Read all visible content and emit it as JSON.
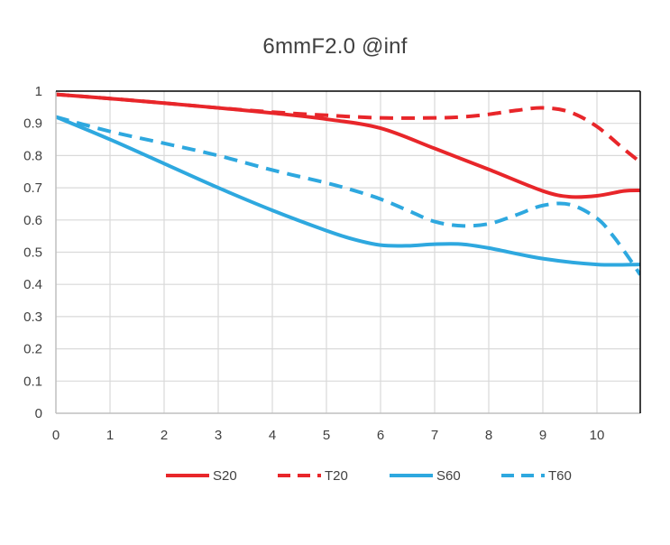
{
  "chart_data": {
    "type": "line",
    "title": "6mmF2.0 @inf",
    "xlabel": "",
    "ylabel": "",
    "xlim": [
      0,
      10.8
    ],
    "ylim": [
      0,
      1
    ],
    "x_ticks": [
      "0",
      "1",
      "2",
      "3",
      "4",
      "5",
      "6",
      "7",
      "8",
      "9",
      "10"
    ],
    "y_ticks": [
      "0",
      "0.1",
      "0.2",
      "0.3",
      "0.4",
      "0.5",
      "0.6",
      "0.7",
      "0.8",
      "0.9",
      "1"
    ],
    "grid": true,
    "legend_position": "bottom",
    "series": [
      {
        "name": "S20",
        "color": "#e8262a",
        "style": "solid",
        "x": [
          0,
          1,
          2,
          3,
          4,
          5,
          6,
          7,
          8,
          9,
          9.5,
          10,
          10.5,
          10.8
        ],
        "y": [
          0.99,
          0.977,
          0.963,
          0.948,
          0.932,
          0.913,
          0.885,
          0.822,
          0.757,
          0.69,
          0.672,
          0.675,
          0.69,
          0.692
        ]
      },
      {
        "name": "T20",
        "color": "#e8262a",
        "style": "dashed",
        "x": [
          0,
          1,
          2,
          3,
          4,
          5,
          6,
          7,
          7.5,
          8,
          8.5,
          9,
          9.5,
          10,
          10.5,
          10.8
        ],
        "y": [
          0.99,
          0.977,
          0.963,
          0.948,
          0.935,
          0.925,
          0.917,
          0.917,
          0.92,
          0.928,
          0.94,
          0.948,
          0.935,
          0.89,
          0.82,
          0.78
        ]
      },
      {
        "name": "S60",
        "color": "#2ea8df",
        "style": "solid",
        "x": [
          0,
          1,
          2,
          3,
          4,
          5,
          5.5,
          6,
          6.5,
          7,
          7.5,
          8,
          9,
          10,
          10.8
        ],
        "y": [
          0.92,
          0.85,
          0.775,
          0.7,
          0.63,
          0.567,
          0.54,
          0.522,
          0.52,
          0.525,
          0.525,
          0.513,
          0.48,
          0.462,
          0.462
        ]
      },
      {
        "name": "T60",
        "color": "#2ea8df",
        "style": "dashed",
        "x": [
          0,
          1,
          2,
          3,
          4,
          5,
          5.5,
          6,
          6.5,
          7,
          7.5,
          8,
          8.5,
          9,
          9.5,
          10,
          10.3,
          10.6,
          10.8
        ],
        "y": [
          0.92,
          0.875,
          0.838,
          0.8,
          0.755,
          0.715,
          0.692,
          0.665,
          0.63,
          0.595,
          0.582,
          0.588,
          0.615,
          0.645,
          0.648,
          0.605,
          0.55,
          0.48,
          0.43
        ]
      }
    ]
  }
}
